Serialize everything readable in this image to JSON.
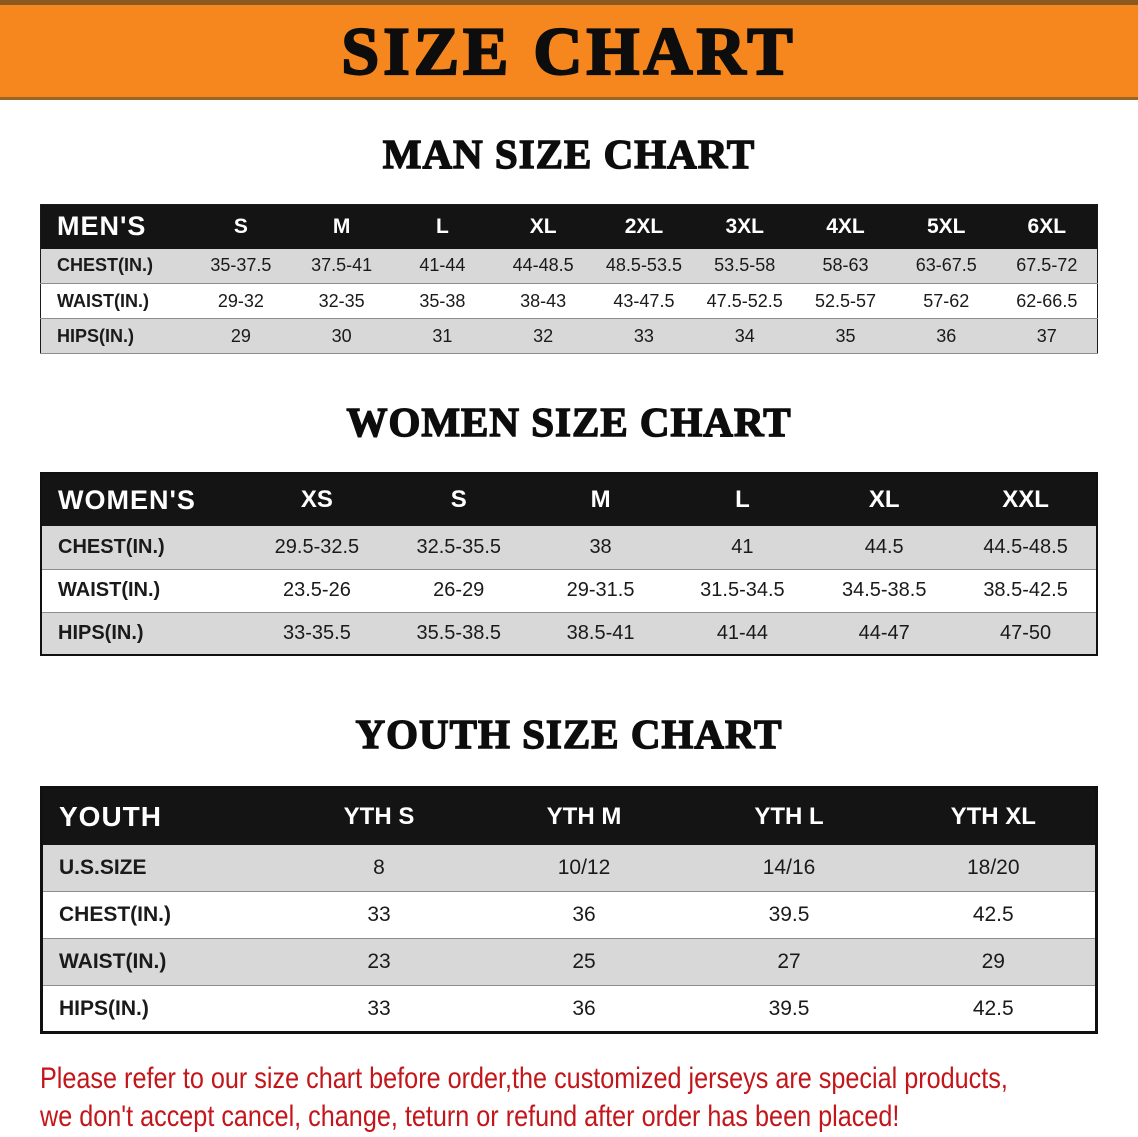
{
  "banner": {
    "title": "SIZE CHART"
  },
  "sections": [
    {
      "heading": "MAN SIZE CHART",
      "table": {
        "name": "mens-size-table",
        "variant": "mens",
        "label": "MEN'S",
        "columns": [
          "S",
          "M",
          "L",
          "XL",
          "2XL",
          "3XL",
          "4XL",
          "5XL",
          "6XL"
        ],
        "rows": [
          {
            "label": "CHEST(IN.)",
            "values": [
              "35-37.5",
              "37.5-41",
              "41-44",
              "44-48.5",
              "48.5-53.5",
              "53.5-58",
              "58-63",
              "63-67.5",
              "67.5-72"
            ]
          },
          {
            "label": "WAIST(IN.)",
            "values": [
              "29-32",
              "32-35",
              "35-38",
              "38-43",
              "43-47.5",
              "47.5-52.5",
              "52.5-57",
              "57-62",
              "62-66.5"
            ]
          },
          {
            "label": "HIPS(IN.)",
            "values": [
              "29",
              "30",
              "31",
              "32",
              "33",
              "34",
              "35",
              "36",
              "37"
            ]
          }
        ]
      }
    },
    {
      "heading": "WOMEN SIZE CHART",
      "table": {
        "name": "womens-size-table",
        "variant": "womens",
        "label": "WOMEN'S",
        "columns": [
          "XS",
          "S",
          "M",
          "L",
          "XL",
          "XXL"
        ],
        "rows": [
          {
            "label": "CHEST(IN.)",
            "values": [
              "29.5-32.5",
              "32.5-35.5",
              "38",
              "41",
              "44.5",
              "44.5-48.5"
            ]
          },
          {
            "label": "WAIST(IN.)",
            "values": [
              "23.5-26",
              "26-29",
              "29-31.5",
              "31.5-34.5",
              "34.5-38.5",
              "38.5-42.5"
            ]
          },
          {
            "label": "HIPS(IN.)",
            "values": [
              "33-35.5",
              "35.5-38.5",
              "38.5-41",
              "41-44",
              "44-47",
              "47-50"
            ]
          }
        ]
      }
    },
    {
      "heading": "YOUTH SIZE CHART",
      "table": {
        "name": "youth-size-table",
        "variant": "youth",
        "label": "YOUTH",
        "columns": [
          "YTH S",
          "YTH M",
          "YTH L",
          "YTH XL"
        ],
        "rows": [
          {
            "label": "U.S.SIZE",
            "values": [
              "8",
              "10/12",
              "14/16",
              "18/20"
            ]
          },
          {
            "label": "CHEST(IN.)",
            "values": [
              "33",
              "36",
              "39.5",
              "42.5"
            ]
          },
          {
            "label": "WAIST(IN.)",
            "values": [
              "23",
              "25",
              "27",
              "29"
            ]
          },
          {
            "label": "HIPS(IN.)",
            "values": [
              "33",
              "36",
              "39.5",
              "42.5"
            ]
          }
        ]
      }
    }
  ],
  "disclaimer": {
    "lines": [
      "Please refer to our size chart before order,the customized jerseys are special products,",
      "we don't accept cancel, change, teturn or refund after order has been placed!"
    ]
  },
  "colors": {
    "banner_bg": "#f6871f",
    "header_bg": "#141414",
    "row_shade": "#d8d8d8",
    "disclaimer_red": "#c3161b"
  }
}
